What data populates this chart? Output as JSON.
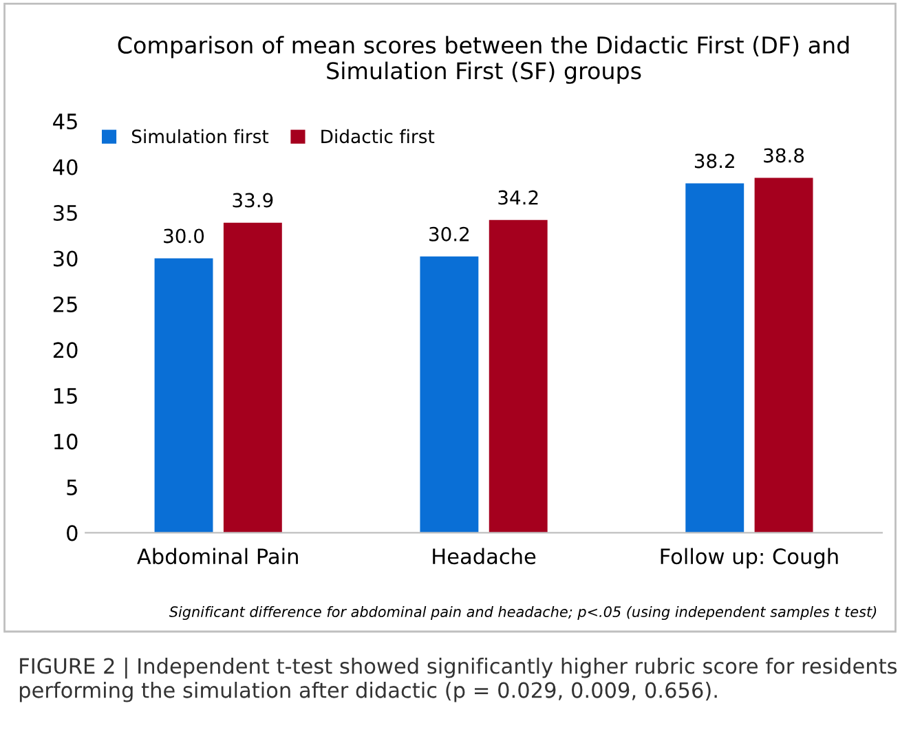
{
  "chart_data": {
    "type": "bar",
    "title": "Comparison of mean scores between the Didactic First (DF) and\nSimulation First (SF) groups",
    "categories": [
      "Abdominal Pain",
      "Headache",
      "Follow up: Cough"
    ],
    "series": [
      {
        "name": "Simulation first",
        "color": "#0a6fd6",
        "values": [
          30.0,
          30.2,
          38.2
        ],
        "value_labels": [
          "30.0",
          "30.2",
          "38.2"
        ]
      },
      {
        "name": "Didactic first",
        "color": "#a5001e",
        "values": [
          33.9,
          34.2,
          38.8
        ],
        "value_labels": [
          "33.9",
          "34.2",
          "38.8"
        ]
      }
    ],
    "ylim": [
      0,
      45
    ],
    "yticks": [
      0,
      5,
      10,
      15,
      20,
      25,
      30,
      35,
      40,
      45
    ],
    "grid": false,
    "legend": "top left",
    "annotations": [
      "Significant difference for abdominal pain and headache; p<.05 (using independent samples t test)",
      "FIGURE 2 | Independent t-test showed significantly higher rubric score for residents performing the simulation after didactic (p = 0.029, 0.009, 0.656)."
    ]
  }
}
